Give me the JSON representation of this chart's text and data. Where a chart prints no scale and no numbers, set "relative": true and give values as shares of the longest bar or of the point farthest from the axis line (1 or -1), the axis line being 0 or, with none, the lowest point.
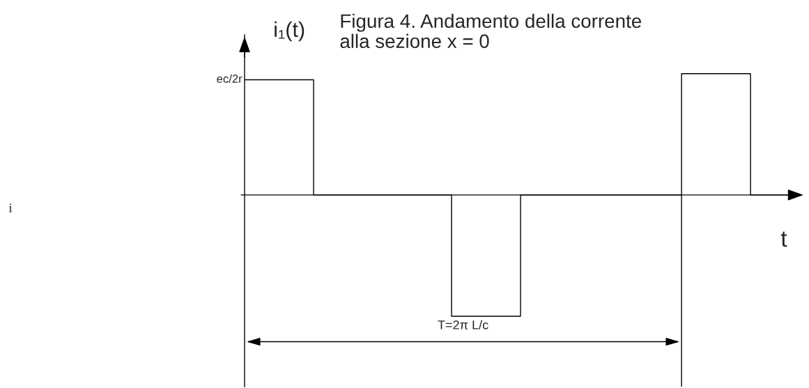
{
  "chart_data": {
    "type": "step",
    "title": "Figura 4. Andamento della corrente\nalla sezione x = 0",
    "xlabel": "t",
    "ylabel": "i₁(t)",
    "relative": true,
    "categories": [
      null,
      null,
      null,
      null,
      null,
      null,
      null,
      null,
      null,
      null,
      null,
      null,
      null,
      null,
      null,
      null,
      null,
      null,
      null,
      null,
      null,
      null,
      null,
      null,
      null
    ],
    "series": [
      {
        "color": "#000000",
        "values": [
          0.95,
          0.95,
          0.95,
          0,
          0,
          0,
          0,
          0,
          0,
          -1,
          -1,
          -1,
          0,
          0,
          0,
          0,
          0,
          0,
          0,
          1,
          1,
          1,
          0,
          0,
          0
        ]
      }
    ],
    "annotations": [
      "ec/2r",
      "T=2π L/c",
      "i"
    ],
    "grid": false
  }
}
